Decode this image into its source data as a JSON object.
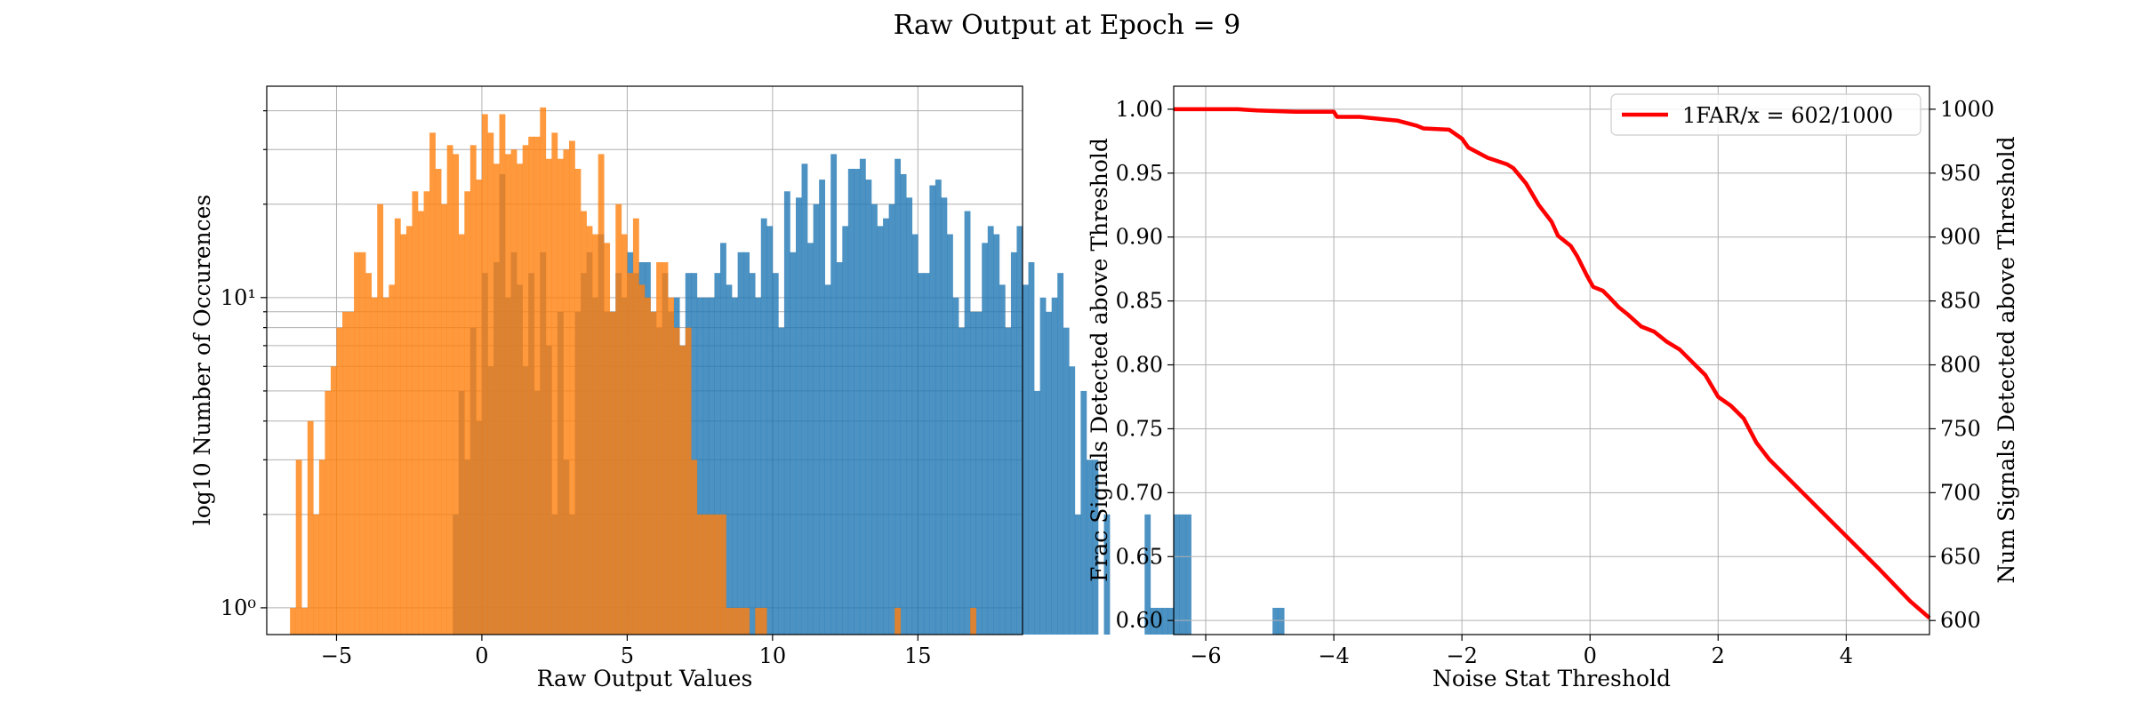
{
  "figure": {
    "title": "Raw Output at Epoch = 9"
  },
  "chart_data": [
    {
      "type": "histogram",
      "xlabel": "Raw Output Values",
      "ylabel": "log10 Number of Occurences",
      "yscale": "log",
      "xlim": [
        -7.4,
        18.6
      ],
      "ylim": [
        0.82,
        48
      ],
      "xticks": [
        -5,
        0,
        5,
        10,
        15
      ],
      "yticks": [
        {
          "value": 1,
          "label": "10⁰"
        },
        {
          "value": 10,
          "label": "10¹"
        }
      ],
      "grid": true,
      "bin_width": 0.2,
      "colors": {
        "signal": "#1f77b4",
        "noise": "#ff7f0e"
      },
      "series": [
        {
          "bin_start": -1.0,
          "counts": [
            2,
            5,
            3,
            8,
            4,
            12,
            6,
            13,
            25,
            10,
            14,
            11,
            6,
            12,
            5,
            14,
            7,
            2,
            9,
            3,
            2,
            9,
            12,
            14,
            10,
            16,
            9,
            9,
            12,
            10,
            14,
            12,
            13,
            13,
            9,
            8,
            12,
            9,
            10,
            7,
            12,
            12,
            10,
            10,
            10,
            12,
            15,
            11,
            10,
            14,
            14,
            12,
            10,
            18,
            17,
            12,
            8,
            22,
            14,
            21,
            27,
            15,
            20,
            24,
            11,
            29,
            13,
            17,
            26,
            26,
            28,
            24,
            20,
            17,
            18,
            20,
            28,
            25,
            21,
            16,
            12,
            12,
            23,
            24,
            21,
            16,
            10,
            8,
            19,
            9,
            9,
            15,
            17,
            16,
            11,
            8,
            14,
            17,
            11,
            13,
            5,
            10,
            9,
            10,
            12,
            8,
            6,
            2,
            5,
            3,
            3,
            0,
            2,
            0,
            0,
            0,
            0,
            0,
            0,
            2,
            1,
            1,
            1,
            1,
            2,
            2,
            2,
            0,
            0,
            0,
            0,
            0,
            0,
            0,
            0,
            0,
            0,
            0,
            0,
            0,
            0,
            1,
            1
          ]
        },
        {
          "bin_start": -6.6,
          "counts": [
            1,
            3,
            1,
            4,
            2,
            3,
            5,
            6,
            8,
            9,
            9,
            14,
            14,
            12,
            10,
            20,
            10,
            11,
            18,
            16,
            17,
            22,
            19,
            22,
            34,
            26,
            20,
            31,
            29,
            16,
            22,
            31,
            24,
            39,
            34,
            27,
            39,
            29,
            30,
            27,
            31,
            33,
            33,
            41,
            28,
            34,
            28,
            30,
            32,
            26,
            19,
            17,
            16,
            29,
            15,
            9,
            20,
            16,
            12,
            18,
            11,
            10,
            9,
            13,
            13,
            10,
            8,
            7,
            8,
            3,
            2,
            2,
            2,
            2,
            2,
            1,
            1,
            1,
            1,
            0,
            1,
            1,
            0,
            0,
            0,
            0,
            0,
            0,
            0,
            0,
            0,
            0,
            0,
            0,
            0,
            0,
            0,
            0,
            0,
            0,
            0,
            0,
            0,
            0,
            1,
            0,
            0,
            0,
            0,
            0,
            0,
            0,
            0,
            0,
            0,
            0,
            0,
            1
          ]
        }
      ]
    },
    {
      "type": "line",
      "xlabel": "Noise Stat Threshold",
      "ylabel": "Frac Signals Detected above Threshold",
      "ylabel_right": "Num Signals Detected above Threshold",
      "xlim": [
        -6.5,
        5.3
      ],
      "ylim": [
        0.589,
        1.018
      ],
      "ylim_right": [
        589,
        1018
      ],
      "xticks": [
        -6,
        -4,
        -2,
        0,
        2,
        4
      ],
      "yticks": [
        0.6,
        0.65,
        0.7,
        0.75,
        0.8,
        0.85,
        0.9,
        0.95,
        1.0
      ],
      "yticks_right": [
        600,
        650,
        700,
        750,
        800,
        850,
        900,
        950,
        1000
      ],
      "grid": true,
      "legend_position": "top-right",
      "series": [
        {
          "name": "1FAR/x = 602/1000",
          "color": "#ff0000",
          "points": [
            [
              -6.5,
              1.0
            ],
            [
              -5.5,
              1.0
            ],
            [
              -5.2,
              0.999
            ],
            [
              -4.6,
              0.998
            ],
            [
              -4.0,
              0.998
            ],
            [
              -3.95,
              0.994
            ],
            [
              -3.6,
              0.994
            ],
            [
              -3.2,
              0.992
            ],
            [
              -3.0,
              0.991
            ],
            [
              -2.7,
              0.987
            ],
            [
              -2.6,
              0.985
            ],
            [
              -2.2,
              0.984
            ],
            [
              -2.0,
              0.977
            ],
            [
              -1.9,
              0.97
            ],
            [
              -1.6,
              0.962
            ],
            [
              -1.3,
              0.957
            ],
            [
              -1.2,
              0.954
            ],
            [
              -1.0,
              0.942
            ],
            [
              -0.8,
              0.925
            ],
            [
              -0.6,
              0.912
            ],
            [
              -0.5,
              0.901
            ],
            [
              -0.3,
              0.893
            ],
            [
              -0.2,
              0.885
            ],
            [
              -0.05,
              0.87
            ],
            [
              0.05,
              0.861
            ],
            [
              0.2,
              0.858
            ],
            [
              0.3,
              0.853
            ],
            [
              0.45,
              0.845
            ],
            [
              0.6,
              0.839
            ],
            [
              0.8,
              0.83
            ],
            [
              1.0,
              0.826
            ],
            [
              1.2,
              0.818
            ],
            [
              1.4,
              0.812
            ],
            [
              1.6,
              0.802
            ],
            [
              1.8,
              0.792
            ],
            [
              2.0,
              0.775
            ],
            [
              2.2,
              0.768
            ],
            [
              2.4,
              0.758
            ],
            [
              2.6,
              0.739
            ],
            [
              2.8,
              0.726
            ],
            [
              3.0,
              0.716
            ],
            [
              3.5,
              0.691
            ],
            [
              4.0,
              0.666
            ],
            [
              4.5,
              0.641
            ],
            [
              5.0,
              0.615
            ],
            [
              5.3,
              0.602
            ]
          ]
        }
      ]
    }
  ]
}
